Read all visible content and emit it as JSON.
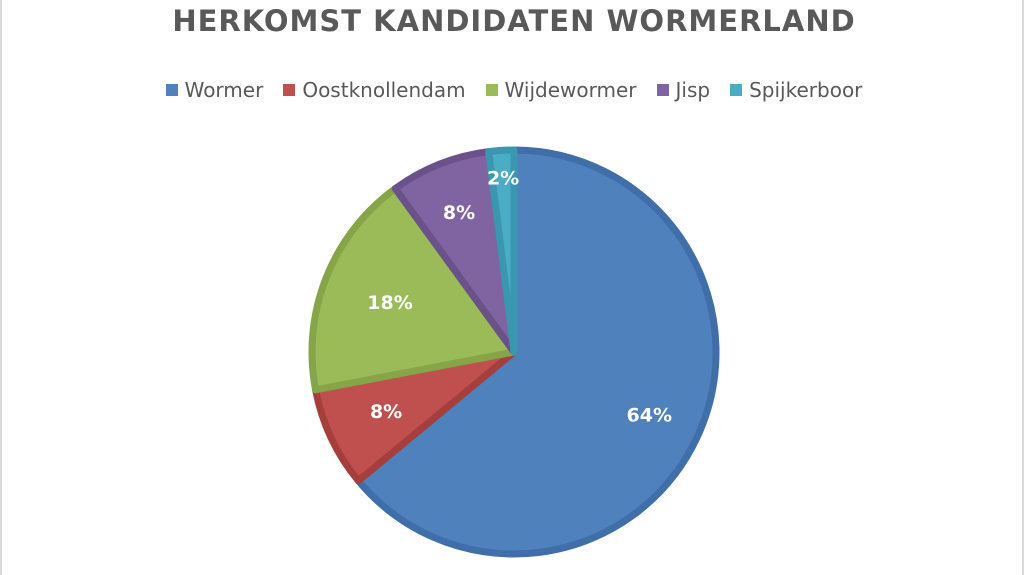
{
  "chart_data": {
    "type": "pie",
    "title": "HERKOMST KANDIDATEN WORMERLAND",
    "legend_position": "top",
    "start_angle": "12 o'clock, clockwise",
    "categories": [
      "Wormer",
      "Oostknollendam",
      "Wijdewormer",
      "Jisp",
      "Spijkerboor"
    ],
    "values": [
      64,
      8,
      18,
      8,
      2
    ],
    "data_labels": [
      "64%",
      "8%",
      "18%",
      "8%",
      "2%"
    ],
    "colors": [
      "#4f81bd",
      "#c0504d",
      "#9bbb59",
      "#8064a2",
      "#4bacc6"
    ],
    "border_colors": [
      "#3f6ea8",
      "#a63f3c",
      "#86a548",
      "#6a5189",
      "#3b97b0"
    ]
  }
}
